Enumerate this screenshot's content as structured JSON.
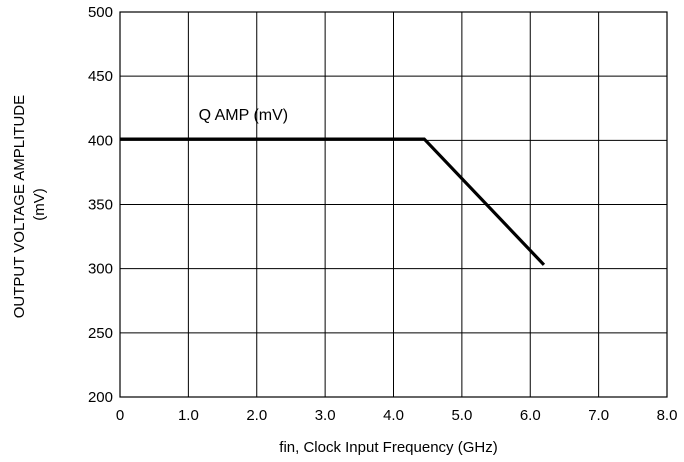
{
  "chart_data": {
    "type": "line",
    "title": "",
    "xlabel": "fin, Clock Input Frequency (GHz)",
    "ylabel_lines": [
      "OUTPUT VOLTAGE AMPLITUDE",
      "(mV)"
    ],
    "xlim": [
      0,
      8
    ],
    "ylim": [
      200,
      500
    ],
    "x_ticks": [
      0,
      1,
      2,
      3,
      4,
      5,
      6,
      7,
      8
    ],
    "x_tick_labels": [
      "0",
      "1.0",
      "2.0",
      "3.0",
      "4.0",
      "5.0",
      "6.0",
      "7.0",
      "8.0"
    ],
    "y_ticks": [
      200,
      250,
      300,
      350,
      400,
      450,
      500
    ],
    "y_tick_labels": [
      "200",
      "250",
      "300",
      "350",
      "400",
      "450",
      "500"
    ],
    "grid": true,
    "legend": "none",
    "series": [
      {
        "name": "Q AMP (mV)",
        "color": "#000000",
        "x": [
          0,
          4.45,
          6.2
        ],
        "y": [
          401,
          401,
          303
        ]
      }
    ]
  }
}
